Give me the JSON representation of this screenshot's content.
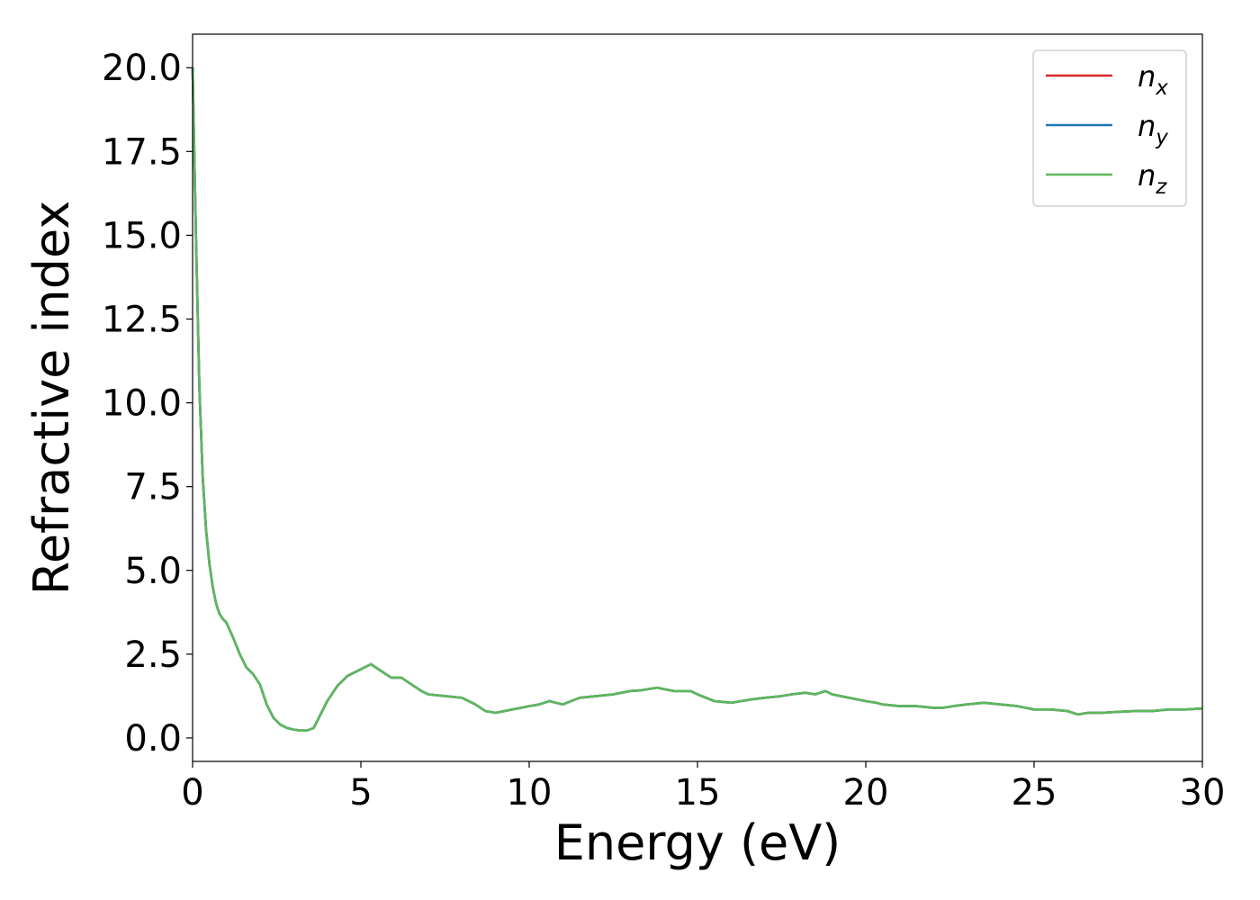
{
  "chart_data": {
    "type": "line",
    "xlabel": "Energy (eV)",
    "ylabel": "Refractive index",
    "xlim": [
      0,
      30
    ],
    "ylim": [
      -0.7,
      21.0
    ],
    "xticks": [
      0,
      5,
      10,
      15,
      20,
      25,
      30
    ],
    "xtick_labels": [
      "0",
      "5",
      "10",
      "15",
      "20",
      "25",
      "30"
    ],
    "yticks": [
      0,
      2.5,
      5,
      7.5,
      10,
      12.5,
      15,
      17.5,
      20
    ],
    "ytick_labels": [
      "0.0",
      "2.5",
      "5.0",
      "7.5",
      "10.0",
      "12.5",
      "15.0",
      "17.5",
      "20.0"
    ],
    "grid": false,
    "legend_position": "top-right",
    "x": [
      0,
      0.1,
      0.2,
      0.3,
      0.4,
      0.5,
      0.6,
      0.7,
      0.8,
      0.9,
      1.0,
      1.2,
      1.4,
      1.6,
      1.8,
      2.0,
      2.2,
      2.4,
      2.6,
      2.8,
      3.0,
      3.2,
      3.4,
      3.6,
      3.8,
      4.0,
      4.3,
      4.6,
      5.0,
      5.3,
      5.6,
      5.9,
      6.2,
      6.5,
      6.8,
      7.0,
      7.5,
      8.0,
      8.4,
      8.7,
      9.0,
      9.5,
      10.0,
      10.3,
      10.6,
      11.0,
      11.5,
      12.0,
      12.5,
      13.0,
      13.3,
      13.8,
      14.3,
      14.8,
      15.0,
      15.5,
      16.0,
      16.3,
      16.6,
      17.0,
      17.5,
      17.8,
      18.2,
      18.5,
      18.8,
      19.0,
      19.5,
      20.0,
      20.3,
      20.5,
      21.0,
      21.5,
      22.0,
      22.3,
      22.6,
      23.0,
      23.5,
      24.0,
      24.5,
      25.0,
      25.5,
      26.0,
      26.3,
      26.6,
      27.0,
      27.5,
      28.0,
      28.5,
      29.0,
      29.5,
      30.0
    ],
    "series": [
      {
        "name": "n_x",
        "color": "#d62728",
        "y": [
          20.0,
          15.0,
          10.5,
          7.8,
          6.2,
          5.2,
          4.5,
          4.0,
          3.7,
          3.55,
          3.45,
          3.0,
          2.5,
          2.1,
          1.9,
          1.6,
          1.0,
          0.6,
          0.4,
          0.3,
          0.25,
          0.22,
          0.22,
          0.3,
          0.7,
          1.1,
          1.55,
          1.85,
          2.05,
          2.2,
          2.0,
          1.8,
          1.8,
          1.6,
          1.4,
          1.3,
          1.25,
          1.2,
          1.0,
          0.8,
          0.75,
          0.85,
          0.95,
          1.0,
          1.1,
          1.0,
          1.2,
          1.25,
          1.3,
          1.4,
          1.42,
          1.5,
          1.4,
          1.4,
          1.3,
          1.1,
          1.05,
          1.1,
          1.15,
          1.2,
          1.25,
          1.3,
          1.35,
          1.3,
          1.4,
          1.3,
          1.2,
          1.1,
          1.05,
          1.0,
          0.95,
          0.95,
          0.9,
          0.9,
          0.95,
          1.0,
          1.05,
          1.0,
          0.95,
          0.85,
          0.85,
          0.8,
          0.7,
          0.75,
          0.75,
          0.78,
          0.8,
          0.8,
          0.85,
          0.85,
          0.88
        ]
      },
      {
        "name": "n_y",
        "color": "#1f77b4",
        "y": [
          20.0,
          15.0,
          10.5,
          7.8,
          6.2,
          5.2,
          4.5,
          4.0,
          3.7,
          3.55,
          3.45,
          3.0,
          2.5,
          2.1,
          1.9,
          1.6,
          1.0,
          0.6,
          0.4,
          0.3,
          0.25,
          0.22,
          0.22,
          0.3,
          0.7,
          1.1,
          1.55,
          1.85,
          2.05,
          2.2,
          2.0,
          1.8,
          1.8,
          1.6,
          1.4,
          1.3,
          1.25,
          1.2,
          1.0,
          0.8,
          0.75,
          0.85,
          0.95,
          1.0,
          1.1,
          1.0,
          1.2,
          1.25,
          1.3,
          1.4,
          1.42,
          1.5,
          1.4,
          1.4,
          1.3,
          1.1,
          1.05,
          1.1,
          1.15,
          1.2,
          1.25,
          1.3,
          1.35,
          1.3,
          1.4,
          1.3,
          1.2,
          1.1,
          1.05,
          1.0,
          0.95,
          0.95,
          0.9,
          0.9,
          0.95,
          1.0,
          1.05,
          1.0,
          0.95,
          0.85,
          0.85,
          0.8,
          0.7,
          0.75,
          0.75,
          0.78,
          0.8,
          0.8,
          0.85,
          0.85,
          0.88
        ]
      },
      {
        "name": "n_z",
        "color": "#5cb85c",
        "y": [
          20.0,
          15.0,
          10.5,
          7.8,
          6.2,
          5.2,
          4.5,
          4.0,
          3.7,
          3.55,
          3.45,
          3.0,
          2.5,
          2.1,
          1.9,
          1.6,
          1.0,
          0.6,
          0.4,
          0.3,
          0.25,
          0.22,
          0.22,
          0.3,
          0.7,
          1.1,
          1.55,
          1.85,
          2.05,
          2.2,
          2.0,
          1.8,
          1.8,
          1.6,
          1.4,
          1.3,
          1.25,
          1.2,
          1.0,
          0.8,
          0.75,
          0.85,
          0.95,
          1.0,
          1.1,
          1.0,
          1.2,
          1.25,
          1.3,
          1.4,
          1.42,
          1.5,
          1.4,
          1.4,
          1.3,
          1.1,
          1.05,
          1.1,
          1.15,
          1.2,
          1.25,
          1.3,
          1.35,
          1.3,
          1.4,
          1.3,
          1.2,
          1.1,
          1.05,
          1.0,
          0.95,
          0.95,
          0.9,
          0.9,
          0.95,
          1.0,
          1.05,
          1.0,
          0.95,
          0.85,
          0.85,
          0.8,
          0.7,
          0.75,
          0.75,
          0.78,
          0.8,
          0.8,
          0.85,
          0.85,
          0.88
        ]
      }
    ],
    "legend": [
      {
        "base": "n",
        "sub": "x"
      },
      {
        "base": "n",
        "sub": "y"
      },
      {
        "base": "n",
        "sub": "z"
      }
    ]
  }
}
